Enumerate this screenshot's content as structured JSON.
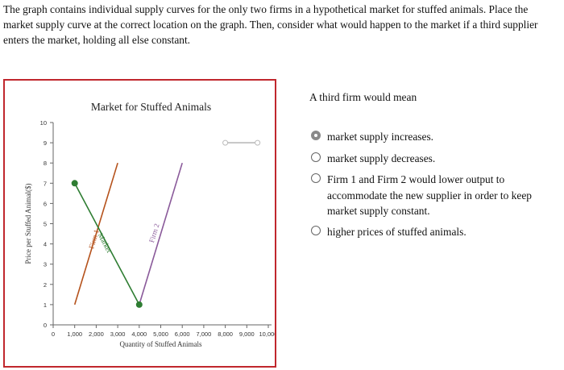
{
  "question": {
    "text": "The graph contains individual supply curves for the only two firms in a hypothetical market for stuffed animals. Place the market supply curve at the correct location on the graph. Then, consider what would happen to the market if a third supplier enters the market, holding all else constant."
  },
  "chart_data": {
    "type": "line",
    "title": "Market for Stuffed Animals",
    "xlabel": "Quantity of Stuffed Animals",
    "ylabel": "Price per Stuffed Animal($)",
    "xlim": [
      0,
      10000
    ],
    "ylim": [
      0,
      10
    ],
    "x_ticks": [
      "0",
      "1,000",
      "2,000",
      "3,000",
      "4,000",
      "5,000",
      "6,000",
      "7,000",
      "8,000",
      "9,000",
      "10,000"
    ],
    "y_ticks": [
      "0",
      "1",
      "2",
      "3",
      "4",
      "5",
      "6",
      "7",
      "8",
      "9",
      "10"
    ],
    "series": [
      {
        "name": "Firm 1",
        "color": "#b5521c",
        "points": [
          [
            1000,
            1
          ],
          [
            3000,
            8
          ]
        ]
      },
      {
        "name": "Firm 2",
        "color": "#8a5a9a",
        "points": [
          [
            4000,
            1
          ],
          [
            6000,
            8
          ]
        ]
      },
      {
        "name": "Market",
        "color": "#2e7d32",
        "points": [
          [
            1000,
            7
          ],
          [
            4000,
            1
          ]
        ],
        "endpoint_markers": true
      },
      {
        "name": "",
        "color": "#bbbbbb",
        "points": [
          [
            8000,
            9
          ],
          [
            9500,
            9
          ]
        ],
        "open_markers": true
      }
    ],
    "grid": false
  },
  "answer": {
    "prompt": "A third firm would mean",
    "options": [
      {
        "label": "market supply increases.",
        "selected": true
      },
      {
        "label": "market supply decreases.",
        "selected": false
      },
      {
        "label": "Firm 1 and Firm 2 would lower output to accommodate the new supplier in order to keep market supply constant.",
        "selected": false
      },
      {
        "label": "higher prices of stuffed animals.",
        "selected": false
      }
    ]
  }
}
